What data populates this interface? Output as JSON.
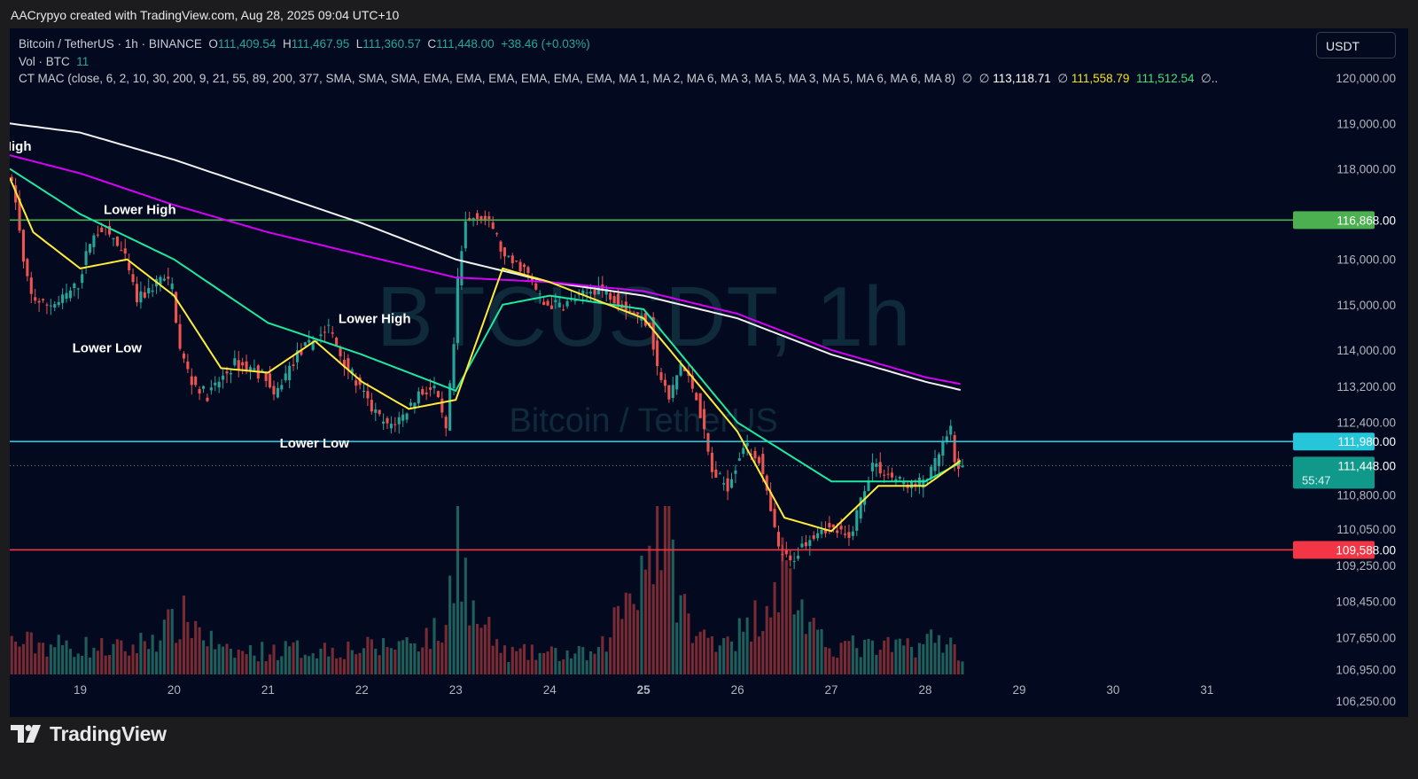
{
  "attribution": "AACrypyo created with TradingView.com, Aug 28, 2025 09:04 UTC+10",
  "legend": {
    "symbol": "Bitcoin / TetherUS · 1h · BINANCE",
    "o_key": "O",
    "o_val": "111,409.54",
    "h_key": "H",
    "h_val": "111,467.95",
    "l_key": "L",
    "l_val": "111,360.57",
    "c_key": "C",
    "c_val": "111,448.00",
    "change": "+38.46 (+0.03%)",
    "vol_label": "Vol · BTC",
    "vol_value": "11",
    "indicator": "CT MAC (close, 6, 2, 10, 30, 200, 9, 21, 55, 89, 200, 377, SMA, SMA, SMA, EMA, EMA, EMA, EMA, EMA, EMA, MA 1, MA 2, MA 6, MA 3, MA 5, MA 3, MA 5, MA 6, MA 6, MA 8)",
    "null_symbol": "∅",
    "ma_white": "113,118.71",
    "ma_yellow": "111,558.79",
    "ma_lime": "111,512.54"
  },
  "currency": "USDT",
  "watermark": {
    "main": "BTCUSDT, 1h",
    "sub": "Bitcoin / TetherUS"
  },
  "footer": {
    "brand": "TradingView"
  },
  "colors": {
    "background": "#030a1f",
    "up": "#26a69a",
    "down": "#ef5350",
    "resistance": "#4caf50",
    "support_mid": "#26c6da",
    "support_low": "#f23645",
    "ma_white": "#f2f2f2",
    "ma_magenta": "#d500f9",
    "ma_green": "#1de9a0",
    "ma_yellow": "#ffeb3b"
  },
  "chart_data": {
    "type": "candlestick",
    "symbol": "BTCUSDT",
    "interval": "1h",
    "x_range": [
      "2025-08-18 06:00",
      "2025-08-31 22:00"
    ],
    "ylim": [
      105900,
      121100
    ],
    "grid": false,
    "x_ticks": [
      {
        "label": "19",
        "date": "2025-08-19 00:00"
      },
      {
        "label": "20",
        "date": "2025-08-20 00:00"
      },
      {
        "label": "21",
        "date": "2025-08-21 00:00"
      },
      {
        "label": "22",
        "date": "2025-08-22 00:00"
      },
      {
        "label": "23",
        "date": "2025-08-23 00:00"
      },
      {
        "label": "24",
        "date": "2025-08-24 00:00"
      },
      {
        "label": "25",
        "date": "2025-08-25 00:00",
        "bold": true
      },
      {
        "label": "26",
        "date": "2025-08-26 00:00"
      },
      {
        "label": "27",
        "date": "2025-08-27 00:00"
      },
      {
        "label": "28",
        "date": "2025-08-28 00:00"
      },
      {
        "label": "29",
        "date": "2025-08-29 00:00"
      },
      {
        "label": "30",
        "date": "2025-08-30 00:00"
      },
      {
        "label": "31",
        "date": "2025-08-31 00:00"
      }
    ],
    "y_ticks": [
      {
        "label": "120,000.00",
        "value": 120000
      },
      {
        "label": "119,000.00",
        "value": 119000
      },
      {
        "label": "118,000.00",
        "value": 118000
      },
      {
        "label": "116,000.00",
        "value": 116000
      },
      {
        "label": "115,000.00",
        "value": 115000
      },
      {
        "label": "114,000.00",
        "value": 114000
      },
      {
        "label": "113,200.00",
        "value": 113200
      },
      {
        "label": "112,400.00",
        "value": 112400
      },
      {
        "label": "110,800.00",
        "value": 110800
      },
      {
        "label": "110,050.00",
        "value": 110050
      },
      {
        "label": "109,250.00",
        "value": 109250
      },
      {
        "label": "108,450.00",
        "value": 108450
      },
      {
        "label": "107,650.00",
        "value": 107650
      },
      {
        "label": "106,950.00",
        "value": 106950
      },
      {
        "label": "106,250.00",
        "value": 106250
      }
    ],
    "horizontal_levels": [
      {
        "value": 116868,
        "label": "116,868.00",
        "color": "#4caf50"
      },
      {
        "value": 111980,
        "label": "111,980.00",
        "color": "#26c6da"
      },
      {
        "value": 109588,
        "label": "109,588.00",
        "color": "#f23645"
      }
    ],
    "last_price": {
      "value": 111448,
      "label": "111,448.00",
      "countdown": "55:47"
    },
    "annotations": [
      {
        "text": "High",
        "date": "2025-08-18 04:00",
        "value": 118400
      },
      {
        "text": "Lower High",
        "date": "2025-08-19 06:00",
        "value": 117000
      },
      {
        "text": "Lower Low",
        "date": "2025-08-18 22:00",
        "value": 113950
      },
      {
        "text": "Lower High",
        "date": "2025-08-21 18:00",
        "value": 114600
      },
      {
        "text": "Lower Low",
        "date": "2025-08-21 03:00",
        "value": 111850
      }
    ],
    "price_anchors": [
      [
        "2025-08-18 06:00",
        117950
      ],
      [
        "2025-08-18 08:00",
        117300
      ],
      [
        "2025-08-18 10:00",
        115900
      ],
      [
        "2025-08-18 12:00",
        115200
      ],
      [
        "2025-08-18 15:00",
        115000
      ],
      [
        "2025-08-18 19:00",
        115050
      ],
      [
        "2025-08-19 00:00",
        115450
      ],
      [
        "2025-08-19 03:00",
        116400
      ],
      [
        "2025-08-19 06:00",
        116700
      ],
      [
        "2025-08-19 09:00",
        116450
      ],
      [
        "2025-08-19 12:00",
        116000
      ],
      [
        "2025-08-19 15:00",
        115100
      ],
      [
        "2025-08-19 18:00",
        115300
      ],
      [
        "2025-08-19 21:00",
        115600
      ],
      [
        "2025-08-20 00:00",
        115400
      ],
      [
        "2025-08-20 02:00",
        114000
      ],
      [
        "2025-08-20 05:00",
        113300
      ],
      [
        "2025-08-20 09:00",
        113000
      ],
      [
        "2025-08-20 13:00",
        113400
      ],
      [
        "2025-08-20 16:00",
        113700
      ],
      [
        "2025-08-20 20:00",
        113600
      ],
      [
        "2025-08-21 00:00",
        113400
      ],
      [
        "2025-08-21 02:00",
        112900
      ],
      [
        "2025-08-21 04:00",
        113300
      ],
      [
        "2025-08-21 08:00",
        113900
      ],
      [
        "2025-08-21 12:00",
        114200
      ],
      [
        "2025-08-21 16:00",
        114500
      ],
      [
        "2025-08-21 19:00",
        113900
      ],
      [
        "2025-08-21 23:00",
        113300
      ],
      [
        "2025-08-22 03:00",
        112700
      ],
      [
        "2025-08-22 07:00",
        112300
      ],
      [
        "2025-08-22 11:00",
        112550
      ],
      [
        "2025-08-22 15:00",
        113050
      ],
      [
        "2025-08-22 19:00",
        113150
      ],
      [
        "2025-08-22 22:00",
        112200
      ],
      [
        "2025-08-23 00:00",
        114100
      ],
      [
        "2025-08-23 01:00",
        115500
      ],
      [
        "2025-08-23 03:00",
        116800
      ],
      [
        "2025-08-23 06:00",
        117000
      ],
      [
        "2025-08-23 10:00",
        116700
      ],
      [
        "2025-08-23 13:00",
        116000
      ],
      [
        "2025-08-23 18:00",
        115800
      ],
      [
        "2025-08-23 23:00",
        115000
      ],
      [
        "2025-08-24 04:00",
        115000
      ],
      [
        "2025-08-24 09:00",
        115200
      ],
      [
        "2025-08-24 13:00",
        115400
      ],
      [
        "2025-08-24 18:00",
        115100
      ],
      [
        "2025-08-24 22:00",
        114800
      ],
      [
        "2025-08-25 02:00",
        114600
      ],
      [
        "2025-08-25 04:00",
        113600
      ],
      [
        "2025-08-25 07:00",
        112900
      ],
      [
        "2025-08-25 10:00",
        113700
      ],
      [
        "2025-08-25 14:00",
        113000
      ],
      [
        "2025-08-25 18:00",
        111300
      ],
      [
        "2025-08-25 22:00",
        111000
      ],
      [
        "2025-08-26 02:00",
        111900
      ],
      [
        "2025-08-26 06:00",
        111600
      ],
      [
        "2025-08-26 08:00",
        110800
      ],
      [
        "2025-08-26 11:00",
        109600
      ],
      [
        "2025-08-26 14:00",
        109300
      ],
      [
        "2025-08-26 18:00",
        109800
      ],
      [
        "2025-08-26 22:00",
        110100
      ],
      [
        "2025-08-27 02:00",
        110000
      ],
      [
        "2025-08-27 05:00",
        109800
      ],
      [
        "2025-08-27 08:00",
        110700
      ],
      [
        "2025-08-27 11:00",
        111500
      ],
      [
        "2025-08-27 14:00",
        111300
      ],
      [
        "2025-08-27 18:00",
        111100
      ],
      [
        "2025-08-27 22:00",
        111000
      ],
      [
        "2025-08-28 02:00",
        111300
      ],
      [
        "2025-08-28 05:00",
        111900
      ],
      [
        "2025-08-28 07:00",
        112200
      ],
      [
        "2025-08-28 08:00",
        111500
      ],
      [
        "2025-08-28 09:00",
        111448
      ]
    ],
    "volume_anchors": [
      [
        "2025-08-18 06:00",
        18
      ],
      [
        "2025-08-19 12:00",
        14
      ],
      [
        "2025-08-20 03:00",
        32
      ],
      [
        "2025-08-20 12:00",
        12
      ],
      [
        "2025-08-21 06:00",
        14
      ],
      [
        "2025-08-22 04:00",
        15
      ],
      [
        "2025-08-22 21:00",
        24
      ],
      [
        "2025-08-23 00:00",
        90
      ],
      [
        "2025-08-23 03:00",
        36
      ],
      [
        "2025-08-23 12:00",
        12
      ],
      [
        "2025-08-24 12:00",
        11
      ],
      [
        "2025-08-25 04:00",
        86
      ],
      [
        "2025-08-25 12:00",
        20
      ],
      [
        "2025-08-26 02:00",
        24
      ],
      [
        "2025-08-26 11:00",
        60
      ],
      [
        "2025-08-26 20:00",
        18
      ],
      [
        "2025-08-27 12:00",
        14
      ],
      [
        "2025-08-28 04:00",
        20
      ],
      [
        "2025-08-28 09:00",
        11
      ]
    ],
    "moving_averages": [
      {
        "color": "#f2f2f2",
        "points": [
          [
            "2025-08-18 06:00",
            119000
          ],
          [
            "2025-08-19 00:00",
            118800
          ],
          [
            "2025-08-20 00:00",
            118200
          ],
          [
            "2025-08-21 00:00",
            117500
          ],
          [
            "2025-08-22 00:00",
            116800
          ],
          [
            "2025-08-23 00:00",
            116000
          ],
          [
            "2025-08-24 00:00",
            115500
          ],
          [
            "2025-08-25 00:00",
            115200
          ],
          [
            "2025-08-26 00:00",
            114700
          ],
          [
            "2025-08-27 00:00",
            113900
          ],
          [
            "2025-08-28 00:00",
            113300
          ],
          [
            "2025-08-28 09:00",
            113118.71
          ]
        ]
      },
      {
        "color": "#d500f9",
        "points": [
          [
            "2025-08-18 06:00",
            118300
          ],
          [
            "2025-08-19 00:00",
            117900
          ],
          [
            "2025-08-20 00:00",
            117200
          ],
          [
            "2025-08-21 00:00",
            116600
          ],
          [
            "2025-08-22 00:00",
            116100
          ],
          [
            "2025-08-23 00:00",
            115600
          ],
          [
            "2025-08-24 00:00",
            115500
          ],
          [
            "2025-08-25 00:00",
            115300
          ],
          [
            "2025-08-26 00:00",
            114800
          ],
          [
            "2025-08-27 00:00",
            114000
          ],
          [
            "2025-08-28 00:00",
            113400
          ],
          [
            "2025-08-28 09:00",
            113250
          ]
        ]
      },
      {
        "color": "#1de9a0",
        "points": [
          [
            "2025-08-18 06:00",
            118000
          ],
          [
            "2025-08-19 00:00",
            117000
          ],
          [
            "2025-08-20 00:00",
            116000
          ],
          [
            "2025-08-21 00:00",
            114600
          ],
          [
            "2025-08-22 00:00",
            113900
          ],
          [
            "2025-08-23 00:00",
            113100
          ],
          [
            "2025-08-23 12:00",
            115000
          ],
          [
            "2025-08-24 00:00",
            115200
          ],
          [
            "2025-08-25 00:00",
            114900
          ],
          [
            "2025-08-26 00:00",
            112400
          ],
          [
            "2025-08-27 00:00",
            111100
          ],
          [
            "2025-08-28 00:00",
            111100
          ],
          [
            "2025-08-28 09:00",
            111512.54
          ]
        ]
      },
      {
        "color": "#ffeb3b",
        "points": [
          [
            "2025-08-18 06:00",
            117800
          ],
          [
            "2025-08-18 12:00",
            116600
          ],
          [
            "2025-08-19 00:00",
            115800
          ],
          [
            "2025-08-19 12:00",
            116000
          ],
          [
            "2025-08-20 00:00",
            115200
          ],
          [
            "2025-08-20 12:00",
            113600
          ],
          [
            "2025-08-21 00:00",
            113500
          ],
          [
            "2025-08-21 12:00",
            114200
          ],
          [
            "2025-08-22 00:00",
            113300
          ],
          [
            "2025-08-22 12:00",
            112700
          ],
          [
            "2025-08-23 00:00",
            112900
          ],
          [
            "2025-08-23 12:00",
            115800
          ],
          [
            "2025-08-24 00:00",
            115500
          ],
          [
            "2025-08-25 00:00",
            114700
          ],
          [
            "2025-08-26 00:00",
            112200
          ],
          [
            "2025-08-26 12:00",
            110300
          ],
          [
            "2025-08-27 00:00",
            110000
          ],
          [
            "2025-08-27 12:00",
            111000
          ],
          [
            "2025-08-28 00:00",
            111000
          ],
          [
            "2025-08-28 09:00",
            111558.79
          ]
        ]
      }
    ]
  }
}
